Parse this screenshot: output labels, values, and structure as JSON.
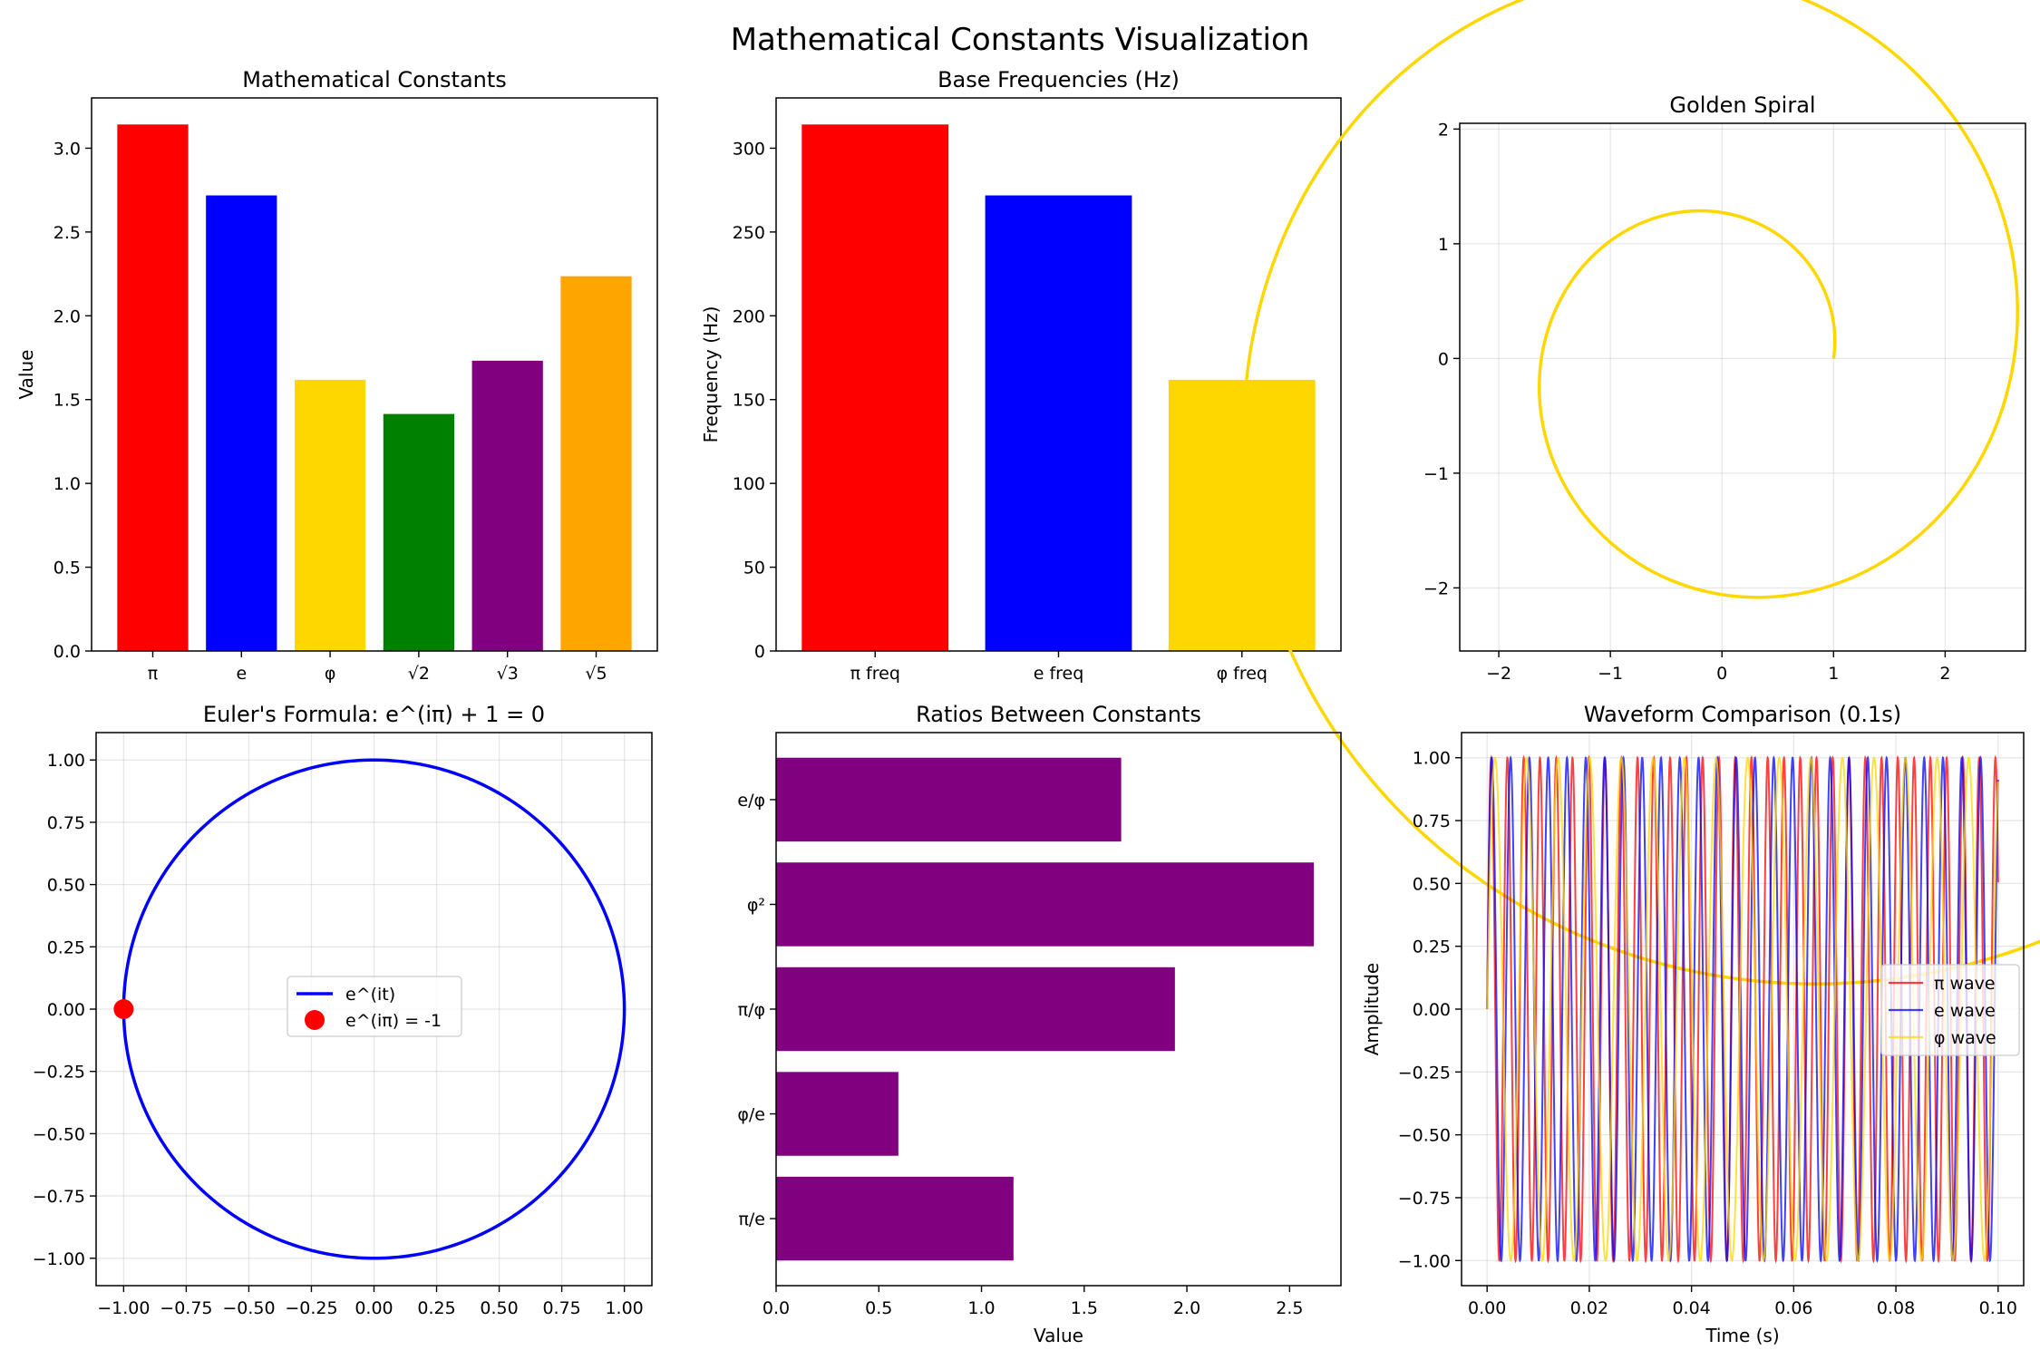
{
  "title": "Mathematical Constants Visualization",
  "chart_data": [
    {
      "id": "constants",
      "type": "bar",
      "title": "Mathematical Constants",
      "xlabel": "",
      "ylabel": "Value",
      "categories": [
        "π",
        "e",
        "φ",
        "√2",
        "√3",
        "√5"
      ],
      "values": [
        3.14159,
        2.71828,
        1.61803,
        1.41421,
        1.73205,
        2.23607
      ],
      "colors": [
        "#ff0000",
        "#0000ff",
        "#ffd700",
        "#008000",
        "#800080",
        "#ffa500"
      ],
      "ylim": [
        0,
        3.3
      ],
      "yticks": [
        "0.0",
        "0.5",
        "1.0",
        "1.5",
        "2.0",
        "2.5",
        "3.0"
      ],
      "grid": false
    },
    {
      "id": "frequencies",
      "type": "bar",
      "title": "Base Frequencies (Hz)",
      "xlabel": "",
      "ylabel": "Frequency (Hz)",
      "categories": [
        "π freq",
        "e freq",
        "φ freq"
      ],
      "values": [
        314.159,
        271.828,
        161.803
      ],
      "colors": [
        "#ff0000",
        "#0000ff",
        "#ffd700"
      ],
      "ylim": [
        0,
        330
      ],
      "yticks": [
        "0",
        "50",
        "100",
        "150",
        "200",
        "250",
        "300"
      ],
      "grid": false
    },
    {
      "id": "spiral",
      "type": "line",
      "title": "Golden Spiral",
      "xlabel": "",
      "ylabel": "",
      "curve": "r = φ^(2θ/π), θ from 0 to 4π",
      "color": "#ffd700",
      "xlim": [
        -2.35,
        2.72
      ],
      "ylim": [
        -2.55,
        2.05
      ],
      "xticks": [
        "−2",
        "−1",
        "0",
        "1",
        "2"
      ],
      "yticks": [
        "−2",
        "−1",
        "0",
        "1",
        "2"
      ],
      "grid": true
    },
    {
      "id": "euler",
      "type": "line",
      "title": "Euler's Formula: e^(iπ) + 1 = 0",
      "xlabel": "",
      "ylabel": "",
      "series": [
        {
          "name": "e^(it)",
          "color": "#0000ff"
        },
        {
          "name": "e^(iπ) = -1",
          "color": "#ff0000",
          "x": -1,
          "y": 0
        }
      ],
      "xlim": [
        -1.11,
        1.11
      ],
      "ylim": [
        -1.11,
        1.11
      ],
      "xticks": [
        "−1.00",
        "−0.75",
        "−0.50",
        "−0.25",
        "0.00",
        "0.25",
        "0.50",
        "0.75",
        "1.00"
      ],
      "yticks": [
        "−1.00",
        "−0.75",
        "−0.50",
        "−0.25",
        "0.00",
        "0.25",
        "0.50",
        "0.75",
        "1.00"
      ],
      "legend": "center",
      "grid": true
    },
    {
      "id": "ratios",
      "type": "bar",
      "orientation": "horizontal",
      "title": "Ratios Between Constants",
      "xlabel": "Value",
      "ylabel": "",
      "categories": [
        "π/e",
        "φ/e",
        "π/φ",
        "φ²",
        "e/φ"
      ],
      "values": [
        1.1557,
        0.5952,
        1.9416,
        2.618,
        1.68
      ],
      "color": "#800080",
      "xlim": [
        0,
        2.75
      ],
      "xticks": [
        "0.0",
        "0.5",
        "1.0",
        "1.5",
        "2.0",
        "2.5"
      ],
      "grid": false
    },
    {
      "id": "waveform",
      "type": "line",
      "title": "Waveform Comparison (0.1s)",
      "xlabel": "Time (s)",
      "ylabel": "Amplitude",
      "series": [
        {
          "name": "π wave",
          "frequency": 314.159,
          "color": "#ff0000"
        },
        {
          "name": "e wave",
          "frequency": 271.828,
          "color": "#0000ff"
        },
        {
          "name": "φ wave",
          "frequency": 161.803,
          "color": "#ffd700"
        }
      ],
      "xlim": [
        -0.005,
        0.105
      ],
      "ylim": [
        -1.1,
        1.1
      ],
      "xticks": [
        "0.00",
        "0.02",
        "0.04",
        "0.06",
        "0.08",
        "0.10"
      ],
      "yticks": [
        "−1.00",
        "−0.75",
        "−0.50",
        "−0.25",
        "0.00",
        "0.25",
        "0.50",
        "0.75",
        "1.00"
      ],
      "legend": "center-right",
      "grid": true
    }
  ]
}
